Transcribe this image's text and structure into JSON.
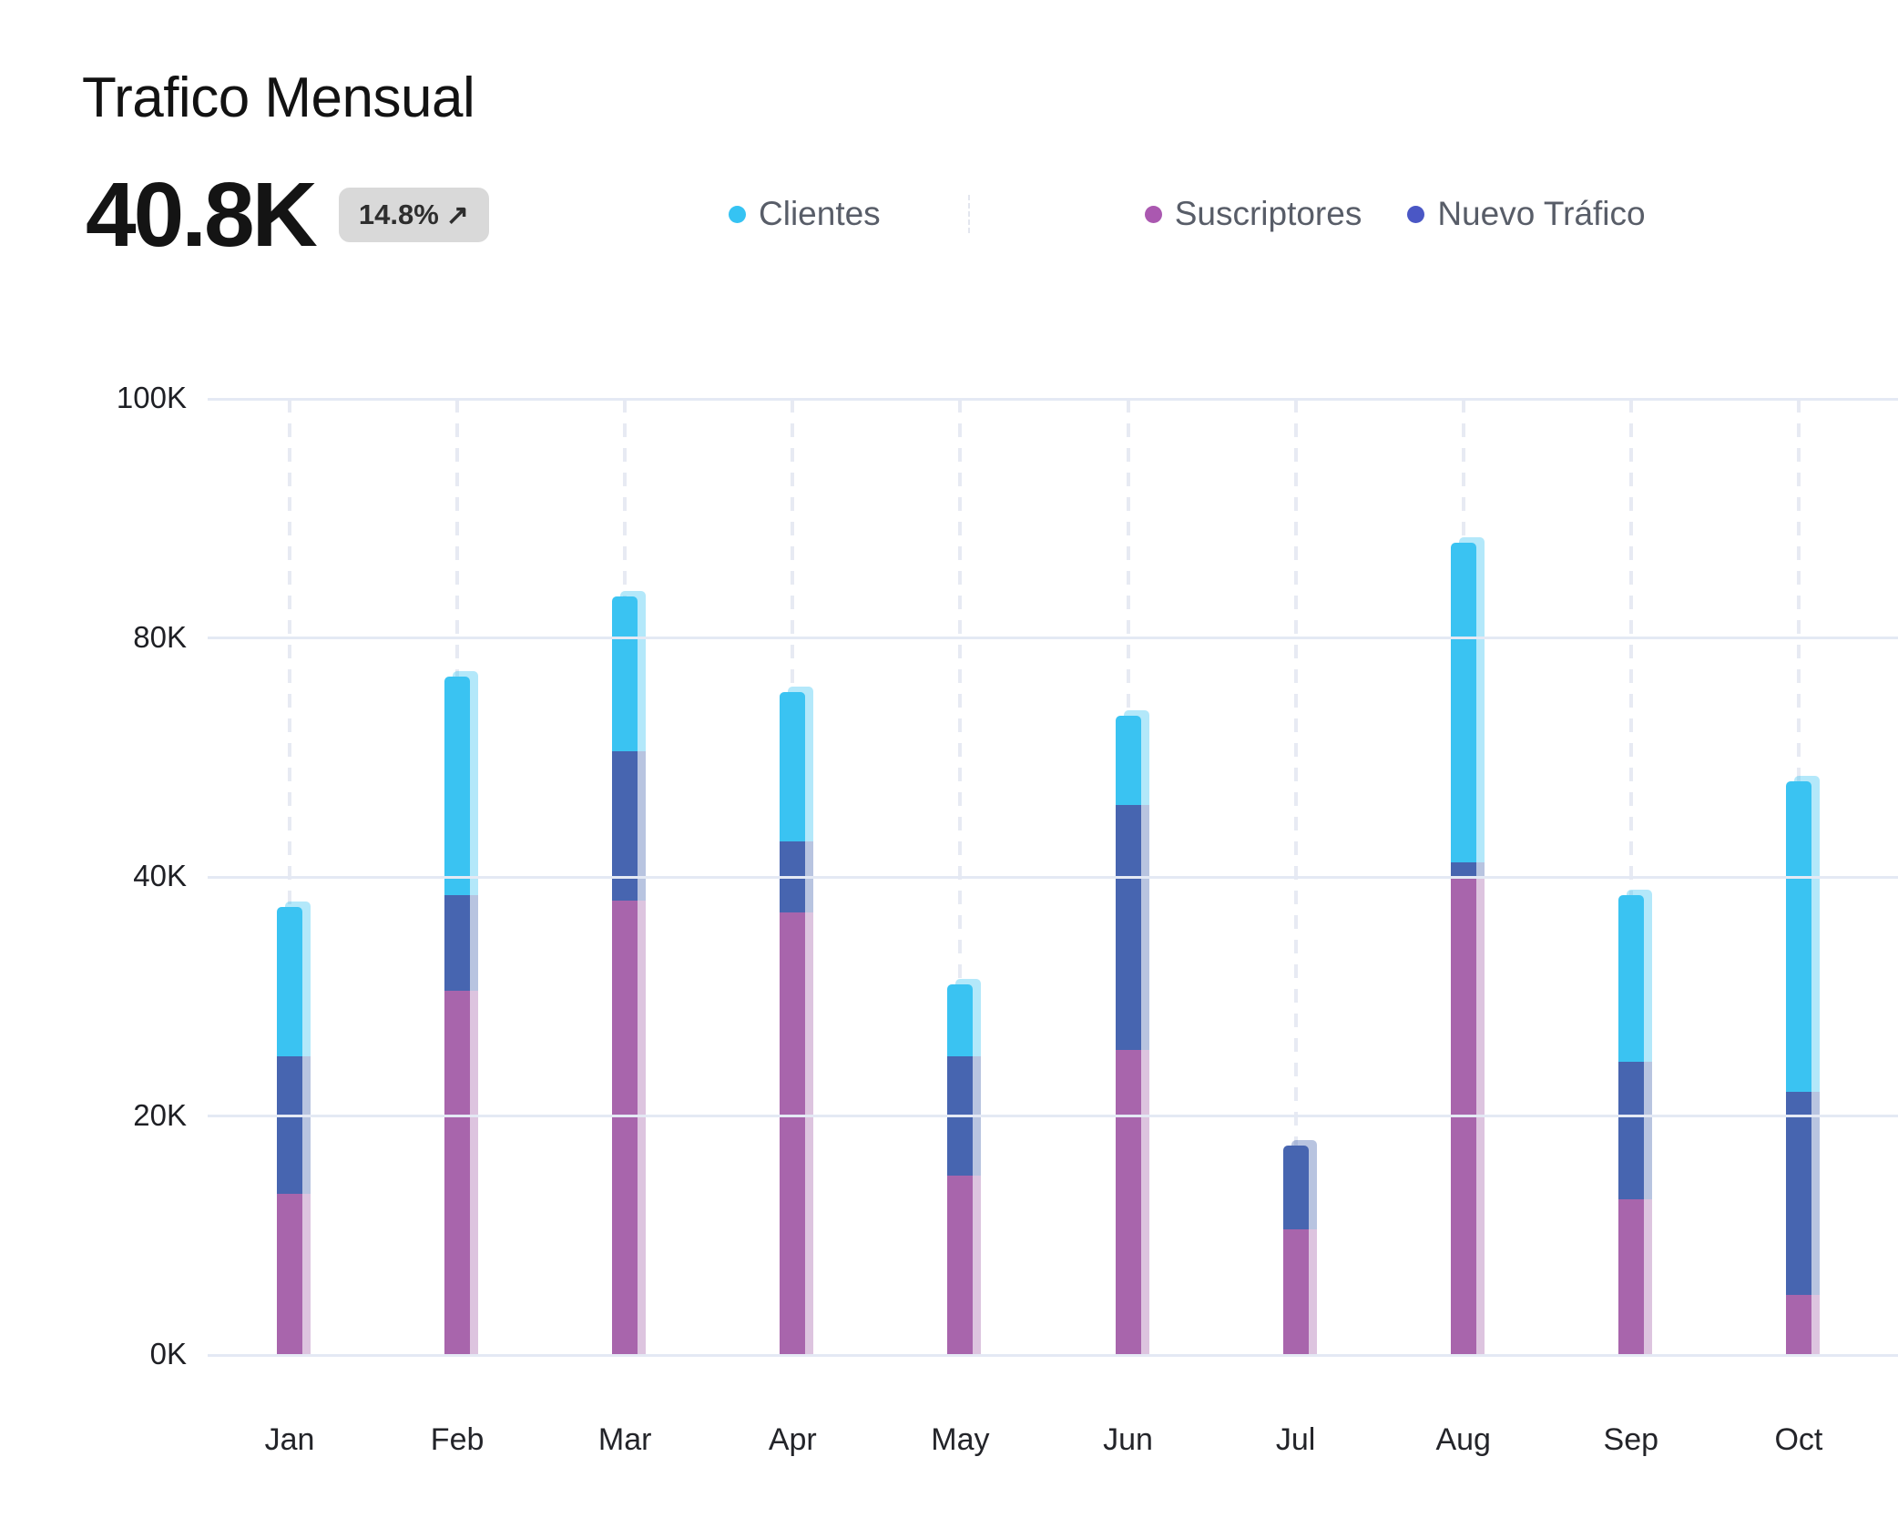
{
  "header": {
    "title": "Trafico Mensual",
    "stat_value": "40.8K",
    "badge_text": "14.8%",
    "badge_arrow": "↗"
  },
  "legend": [
    {
      "label": "Clientes",
      "color": "#35c3f3"
    },
    {
      "label": "Suscriptores",
      "color": "#aa58b0"
    },
    {
      "label": "Nuevo Tráfico",
      "color": "#4a57c5"
    }
  ],
  "chart_data": {
    "type": "bar",
    "stacked": true,
    "title": "Trafico Mensual",
    "xlabel": "",
    "ylabel": "",
    "units": "K (thousands)",
    "legend_position": "top",
    "grid": {
      "horizontal": "solid",
      "vertical": "dashed"
    },
    "categories": [
      "Jan",
      "Feb",
      "Mar",
      "Apr",
      "May",
      "Jun",
      "Jul",
      "Aug",
      "Sep",
      "Oct"
    ],
    "series": [
      {
        "name": "Suscriptores",
        "color": "#a865ac",
        "stack_position": "bottom",
        "values": [
          13.5,
          30.5,
          38.0,
          37.0,
          15.0,
          25.5,
          10.5,
          40.0,
          13.0,
          5.0
        ]
      },
      {
        "name": "Nuevo Tráfico",
        "color": "#4765b0",
        "stack_position": "middle",
        "values": [
          11.5,
          8.0,
          23.0,
          9.0,
          10.0,
          26.5,
          7.0,
          2.5,
          11.5,
          17.0
        ]
      },
      {
        "name": "Clientes",
        "color": "#3ac3f2",
        "stack_position": "top",
        "values": [
          12.5,
          35.0,
          22.5,
          25.0,
          6.0,
          15.0,
          0.0,
          45.5,
          14.0,
          34.0
        ]
      }
    ],
    "totals": [
      37.5,
      73.5,
      83.5,
      71.0,
      31.0,
      67.0,
      17.5,
      88.0,
      38.5,
      56.0
    ],
    "y_ticks": [
      {
        "label": "0K",
        "value": 0
      },
      {
        "label": "20K",
        "value": 20
      },
      {
        "label": "40K",
        "value": 40
      },
      {
        "label": "80K",
        "value": 80
      },
      {
        "label": "100K",
        "value": 100
      }
    ]
  }
}
